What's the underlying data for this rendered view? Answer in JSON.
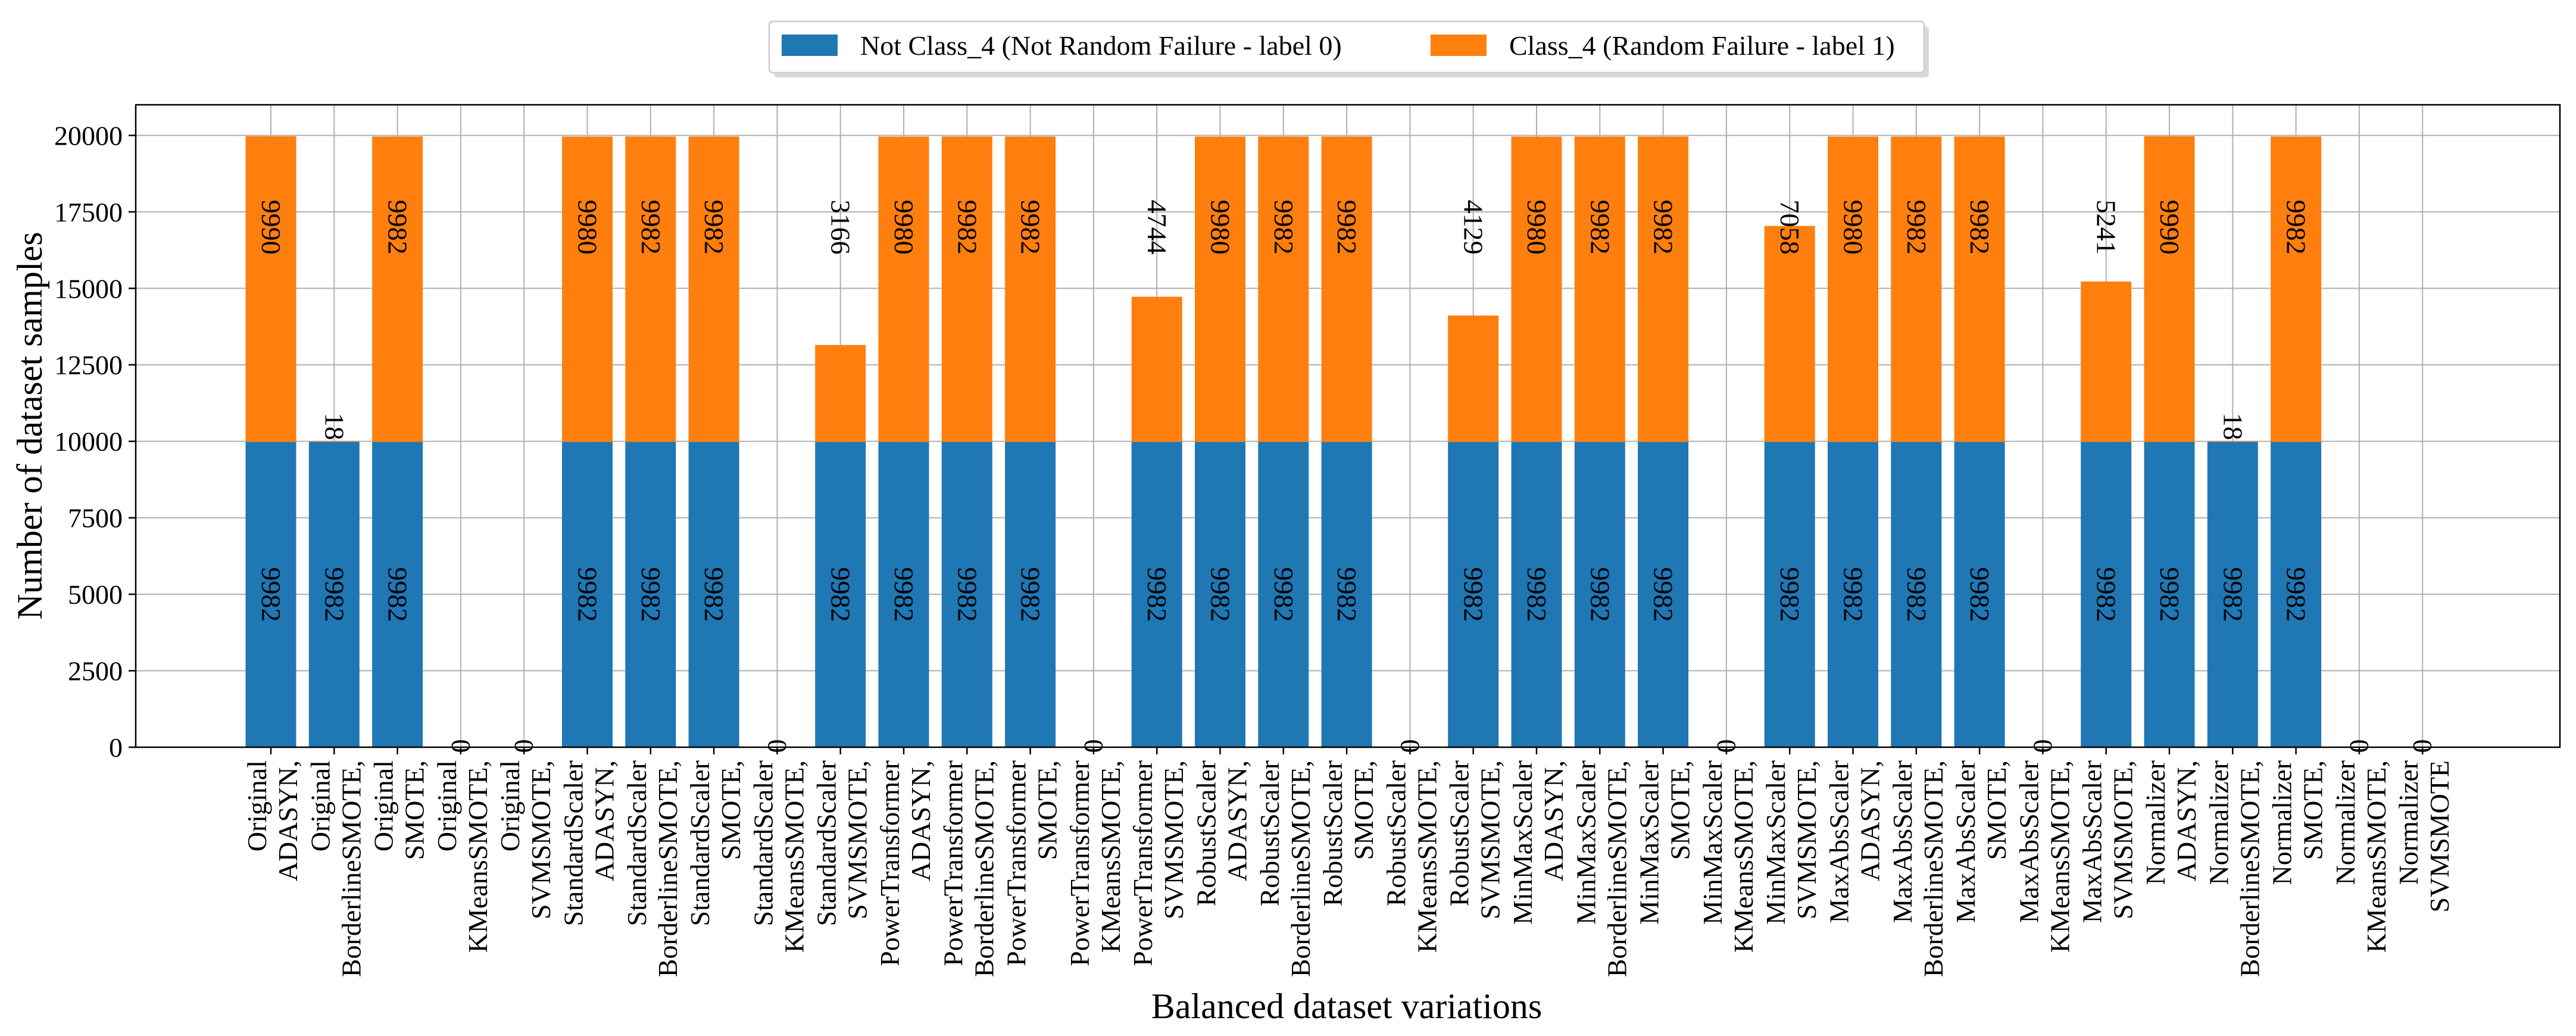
{
  "chart_data": {
    "type": "bar",
    "stacked": true,
    "title": "",
    "xlabel": "Balanced dataset variations",
    "ylabel": "Number of dataset samples",
    "ylim": [
      0,
      21000
    ],
    "yticks": [
      0,
      2500,
      5000,
      7500,
      10000,
      12500,
      15000,
      17500,
      20000
    ],
    "grid": true,
    "legend_position": "top-center",
    "categories": [
      [
        "Original",
        "ADASYN,"
      ],
      [
        "Original",
        "BorderlineSMOTE,"
      ],
      [
        "Original",
        "SMOTE,"
      ],
      [
        "Original",
        "KMeansSMOTE,"
      ],
      [
        "Original",
        "SVMSMOTE,"
      ],
      [
        "StandardScaler",
        "ADASYN,"
      ],
      [
        "StandardScaler",
        "BorderlineSMOTE,"
      ],
      [
        "StandardScaler",
        "SMOTE,"
      ],
      [
        "StandardScaler",
        "KMeansSMOTE,"
      ],
      [
        "StandardScaler",
        "SVMSMOTE,"
      ],
      [
        "PowerTransformer",
        "ADASYN,"
      ],
      [
        "PowerTransformer",
        "BorderlineSMOTE,"
      ],
      [
        "PowerTransformer",
        "SMOTE,"
      ],
      [
        "PowerTransformer",
        "KMeansSMOTE,"
      ],
      [
        "PowerTransformer",
        "SVMSMOTE,"
      ],
      [
        "RobustScaler",
        "ADASYN,"
      ],
      [
        "RobustScaler",
        "BorderlineSMOTE,"
      ],
      [
        "RobustScaler",
        "SMOTE,"
      ],
      [
        "RobustScaler",
        "KMeansSMOTE,"
      ],
      [
        "RobustScaler",
        "SVMSMOTE,"
      ],
      [
        "MinMaxScaler",
        "ADASYN,"
      ],
      [
        "MinMaxScaler",
        "BorderlineSMOTE,"
      ],
      [
        "MinMaxScaler",
        "SMOTE,"
      ],
      [
        "MinMaxScaler",
        "KMeansSMOTE,"
      ],
      [
        "MinMaxScaler",
        "SVMSMOTE,"
      ],
      [
        "MaxAbsScaler",
        "ADASYN,"
      ],
      [
        "MaxAbsScaler",
        "BorderlineSMOTE,"
      ],
      [
        "MaxAbsScaler",
        "SMOTE,"
      ],
      [
        "MaxAbsScaler",
        "KMeansSMOTE,"
      ],
      [
        "MaxAbsScaler",
        "SVMSMOTE,"
      ],
      [
        "Normalizer",
        "ADASYN,"
      ],
      [
        "Normalizer",
        "BorderlineSMOTE,"
      ],
      [
        "Normalizer",
        "SMOTE,"
      ],
      [
        "Normalizer",
        "KMeansSMOTE,"
      ],
      [
        "Normalizer",
        "SVMSMOTE"
      ]
    ],
    "series": [
      {
        "name": "Not Class_4 (Not Random Failure - label 0)",
        "color": "#1f77b4",
        "values": [
          9982,
          9982,
          9982,
          0,
          0,
          9982,
          9982,
          9982,
          0,
          9982,
          9982,
          9982,
          9982,
          0,
          9982,
          9982,
          9982,
          9982,
          0,
          9982,
          9982,
          9982,
          9982,
          0,
          9982,
          9982,
          9982,
          9982,
          0,
          9982,
          9982,
          9982,
          9982,
          0,
          0
        ]
      },
      {
        "name": "Class_4 (Random Failure - label 1)",
        "color": "#ff7f0e",
        "values": [
          9990,
          18,
          9982,
          0,
          0,
          9980,
          9982,
          9982,
          0,
          3166,
          9980,
          9982,
          9982,
          0,
          4744,
          9980,
          9982,
          9982,
          0,
          4129,
          9980,
          9982,
          9982,
          0,
          7058,
          9980,
          9982,
          9982,
          0,
          5241,
          9990,
          18,
          9982,
          0,
          0
        ]
      }
    ]
  }
}
